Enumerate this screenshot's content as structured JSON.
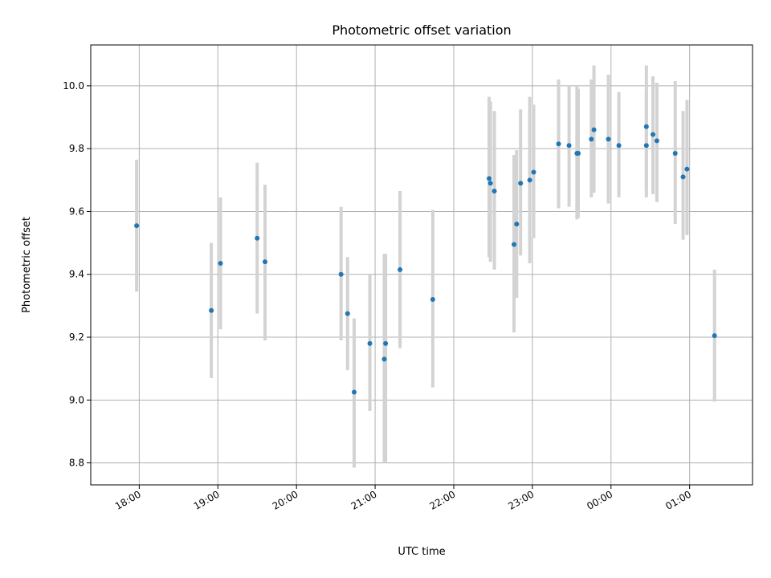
{
  "chart_data": {
    "type": "scatter",
    "title": "Photometric offset variation",
    "xlabel": "UTC time",
    "ylabel": "Photometric offset",
    "grid": true,
    "xlim": [
      "17:23",
      "01:48"
    ],
    "ylim": [
      8.73,
      10.13
    ],
    "x_ticks": [
      "18:00",
      "19:00",
      "20:00",
      "21:00",
      "22:00",
      "23:00",
      "00:00",
      "01:00"
    ],
    "y_ticks": [
      "8.8",
      "9.0",
      "9.2",
      "9.4",
      "9.6",
      "9.8",
      "10.0"
    ],
    "colors": {
      "point": "#1f77b4",
      "error_bar": "#d3d3d3",
      "grid": "#b0b0b0"
    },
    "series": [
      {
        "x": [
          "17:58",
          "18:55",
          "19:02",
          "19:30",
          "19:36",
          "20:34",
          "20:39",
          "20:44",
          "20:56",
          "21:07",
          "21:08",
          "21:19",
          "21:44",
          "22:27",
          "22:28",
          "22:31",
          "22:46",
          "22:48",
          "22:51",
          "22:58",
          "23:01",
          "23:20",
          "23:28",
          "23:34",
          "23:35",
          "23:45",
          "23:47",
          "23:58",
          "00:06",
          "00:27",
          "00:27",
          "00:32",
          "00:35",
          "00:49",
          "00:55",
          "00:58",
          "01:19"
        ],
        "y": [
          9.555,
          9.285,
          9.435,
          9.515,
          9.44,
          9.4,
          9.275,
          9.025,
          9.18,
          9.13,
          9.18,
          9.415,
          9.32,
          9.705,
          9.69,
          9.665,
          9.495,
          9.56,
          9.69,
          9.7,
          9.725,
          9.815,
          9.81,
          9.785,
          9.785,
          9.83,
          9.86,
          9.83,
          9.81,
          9.87,
          9.81,
          9.845,
          9.825,
          9.785,
          9.71,
          9.735,
          9.205
        ],
        "y_low": [
          9.345,
          9.07,
          9.225,
          9.275,
          9.19,
          9.19,
          9.095,
          8.785,
          8.965,
          8.8,
          8.8,
          9.165,
          9.04,
          9.455,
          9.44,
          9.415,
          9.215,
          9.325,
          9.46,
          9.435,
          9.515,
          9.61,
          9.615,
          9.575,
          9.58,
          9.645,
          9.66,
          9.625,
          9.645,
          9.67,
          9.645,
          9.655,
          9.63,
          9.56,
          9.51,
          9.525,
          8.995
        ],
        "y_high": [
          9.765,
          9.5,
          9.645,
          9.755,
          9.685,
          9.615,
          9.455,
          9.26,
          9.4,
          9.465,
          9.465,
          9.665,
          9.605,
          9.965,
          9.95,
          9.92,
          9.78,
          9.795,
          9.925,
          9.965,
          9.94,
          10.02,
          10.0,
          10.0,
          9.99,
          10.02,
          10.065,
          10.035,
          9.98,
          10.065,
          9.98,
          10.03,
          10.01,
          10.015,
          9.92,
          9.955,
          9.415
        ]
      }
    ]
  }
}
